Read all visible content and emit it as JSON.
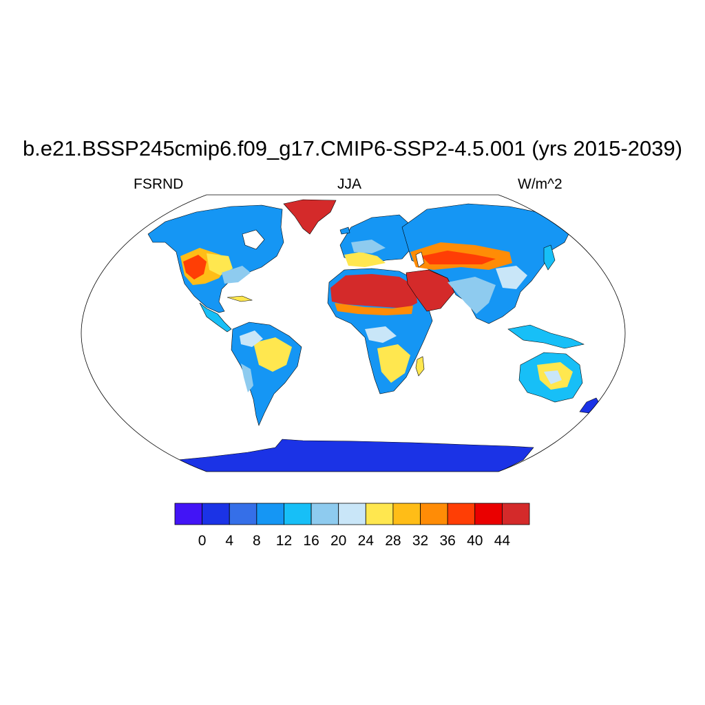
{
  "figure": {
    "title": "b.e21.BSSP245cmip6.f09_g17.CMIP6-SSP2-4.5.001 (yrs 2015-2039)",
    "left_label": "FSRND",
    "center_label": "JJA",
    "right_label": "W/m^2"
  },
  "colorbar": {
    "colors": [
      "#4214f6",
      "#1b33e6",
      "#356fe8",
      "#1596f4",
      "#17bff7",
      "#8ecbef",
      "#c9e6f8",
      "#ffe74f",
      "#ffbd17",
      "#ff8c06",
      "#ff3e05",
      "#ea0000",
      "#d42a2a"
    ],
    "tick_labels": [
      "0",
      "4",
      "8",
      "12",
      "16",
      "20",
      "24",
      "28",
      "32",
      "36",
      "40",
      "44"
    ]
  },
  "map": {
    "projection": "Robinson",
    "regions": [
      {
        "name": "Greenland",
        "value_range": "44+"
      },
      {
        "name": "Sahara",
        "value_range": "44+"
      },
      {
        "name": "Arabian Peninsula",
        "value_range": "44+"
      },
      {
        "name": "Antarctica",
        "value_range": "0-4"
      }
    ]
  }
}
